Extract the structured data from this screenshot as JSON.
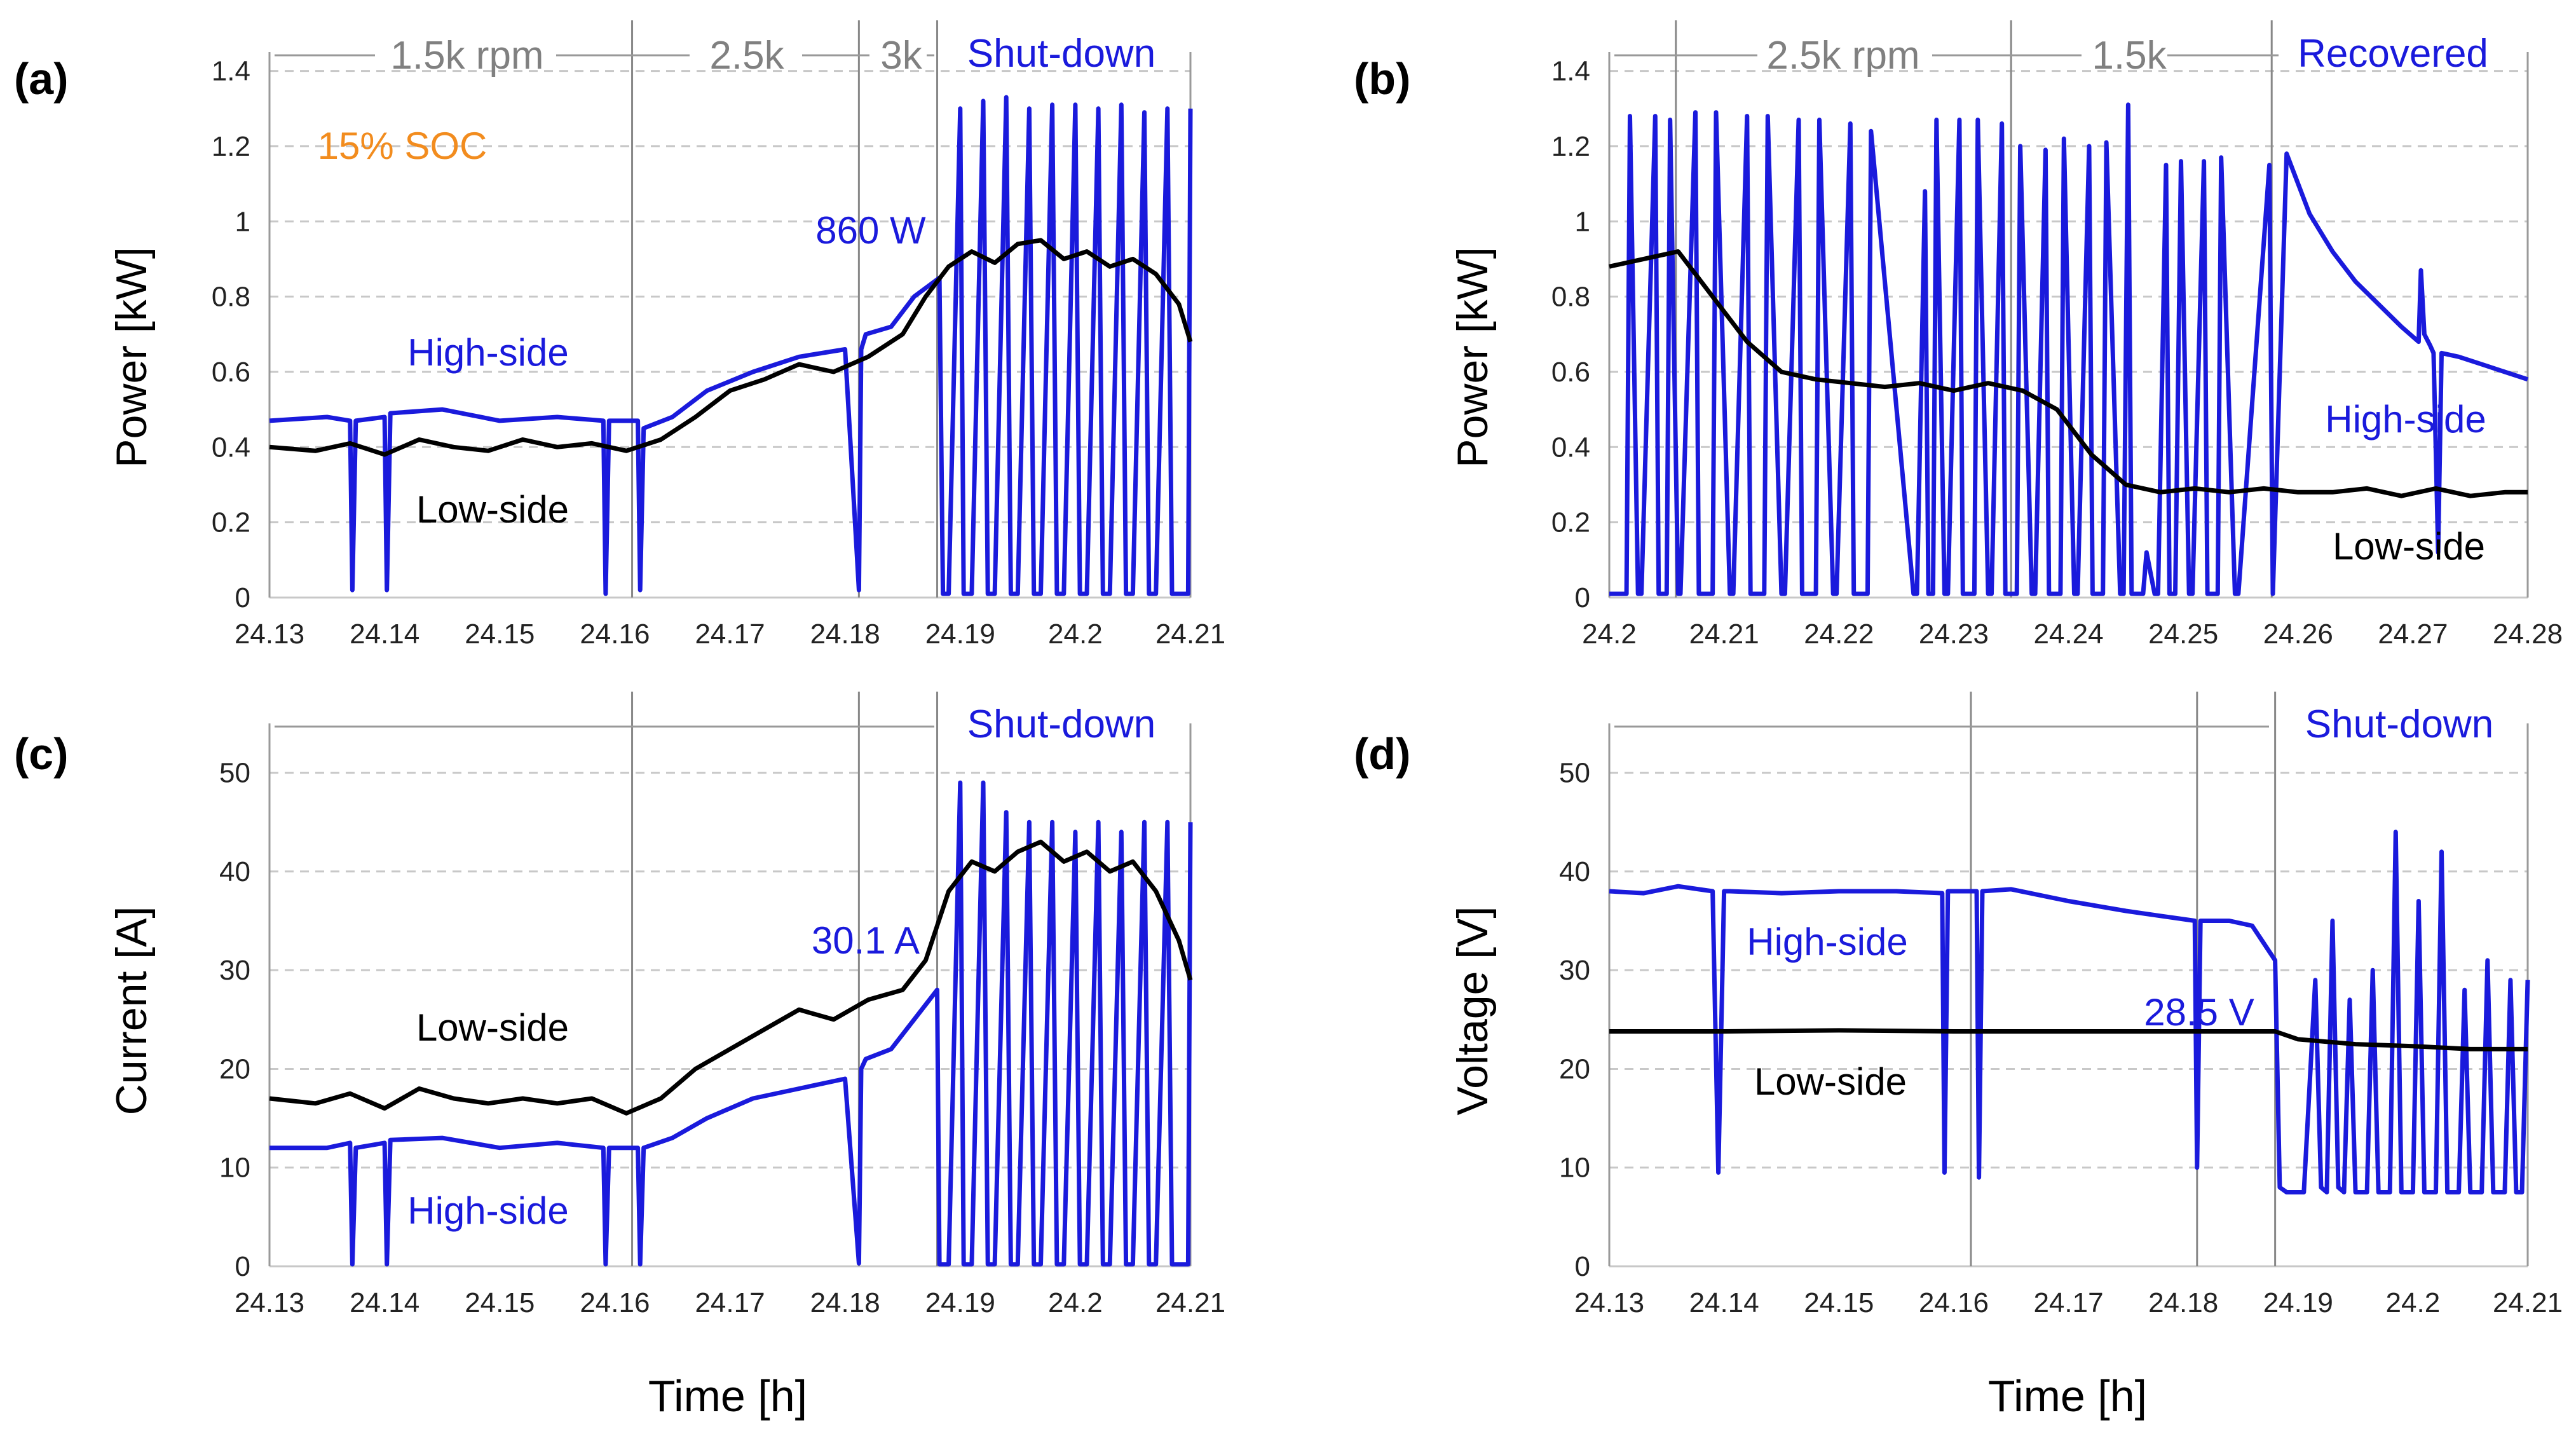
{
  "figure": {
    "shared_xlabel": "Time [h]",
    "colors": {
      "high_side": "#1a1adc",
      "low_side": "#000000",
      "soc": "#f28c1e",
      "phase": "#808080",
      "grid": "#c8c8c8"
    }
  },
  "chart_data": [
    {
      "panel": "(a)",
      "type": "line",
      "ylabel": "Power [kW]",
      "xlim": [
        24.13,
        24.21
      ],
      "ylim": [
        0,
        1.45
      ],
      "xticks": [
        "24.13",
        "24.14",
        "24.15",
        "24.16",
        "24.17",
        "24.18",
        "24.19",
        "24.2",
        "24.21"
      ],
      "yticks": [
        "0",
        "0.2",
        "0.4",
        "0.6",
        "0.8",
        "1",
        "1.2",
        "1.4"
      ],
      "phases": [
        "1.5k rpm",
        "2.5k",
        "3k",
        "Shut-down"
      ],
      "annotations": [
        "15% SOC",
        "860 W",
        "High-side",
        "Low-side"
      ],
      "series": [
        {
          "name": "High-side",
          "x": [
            24.13,
            24.135,
            24.137,
            24.1372,
            24.1375,
            24.14,
            24.1402,
            24.1405,
            24.145,
            24.15,
            24.155,
            24.159,
            24.1592,
            24.1595,
            24.162,
            24.1622,
            24.1625,
            24.165,
            24.168,
            24.172,
            24.176,
            24.18,
            24.1812,
            24.1814,
            24.1818,
            24.184,
            24.186,
            24.1882,
            24.1885,
            24.189,
            24.19,
            24.1903,
            24.191,
            24.192,
            24.1924,
            24.193,
            24.194,
            24.1944,
            24.195,
            24.196,
            24.1964,
            24.197,
            24.198,
            24.1984,
            24.199,
            24.2,
            24.2004,
            24.201,
            24.202,
            24.2024,
            24.203,
            24.204,
            24.2044,
            24.205,
            24.206,
            24.2064,
            24.207,
            24.208,
            24.2084,
            24.209,
            24.2098,
            24.21
          ],
          "y": [
            0.47,
            0.48,
            0.47,
            0.02,
            0.47,
            0.48,
            0.02,
            0.49,
            0.5,
            0.47,
            0.48,
            0.47,
            0.01,
            0.47,
            0.47,
            0.02,
            0.45,
            0.48,
            0.55,
            0.6,
            0.64,
            0.66,
            0.02,
            0.66,
            0.7,
            0.72,
            0.8,
            0.85,
            0.01,
            0.01,
            1.3,
            0.01,
            0.01,
            1.32,
            0.01,
            0.01,
            1.33,
            0.01,
            0.01,
            1.3,
            0.01,
            0.01,
            1.31,
            0.01,
            0.01,
            1.31,
            0.01,
            0.01,
            1.3,
            0.01,
            0.01,
            1.31,
            0.01,
            0.01,
            1.29,
            0.01,
            0.01,
            1.3,
            0.01,
            0.01,
            0.01,
            1.3
          ]
        },
        {
          "name": "Low-side",
          "x": [
            24.13,
            24.134,
            24.137,
            24.14,
            24.143,
            24.146,
            24.149,
            24.152,
            24.155,
            24.158,
            24.161,
            24.164,
            24.167,
            24.17,
            24.173,
            24.176,
            24.179,
            24.182,
            24.185,
            24.187,
            24.189,
            24.191,
            24.193,
            24.195,
            24.197,
            24.199,
            24.201,
            24.203,
            24.205,
            24.207,
            24.209,
            24.21
          ],
          "y": [
            0.4,
            0.39,
            0.41,
            0.38,
            0.42,
            0.4,
            0.39,
            0.42,
            0.4,
            0.41,
            0.39,
            0.42,
            0.48,
            0.55,
            0.58,
            0.62,
            0.6,
            0.64,
            0.7,
            0.8,
            0.88,
            0.92,
            0.89,
            0.94,
            0.95,
            0.9,
            0.92,
            0.88,
            0.9,
            0.86,
            0.78,
            0.68
          ]
        }
      ]
    },
    {
      "panel": "(b)",
      "type": "line",
      "ylabel": "Power [kW]",
      "xlim": [
        24.2,
        24.28
      ],
      "ylim": [
        0,
        1.45
      ],
      "xticks": [
        "24.2",
        "24.21",
        "24.22",
        "24.23",
        "24.24",
        "24.25",
        "24.26",
        "24.27",
        "24.28"
      ],
      "yticks": [
        "0",
        "0.2",
        "0.4",
        "0.6",
        "0.8",
        "1",
        "1.2",
        "1.4"
      ],
      "phases": [
        "2.5k rpm",
        "1.5k",
        "Recovered"
      ],
      "annotations": [
        "High-side",
        "Low-side"
      ],
      "series": [
        {
          "name": "High-side",
          "x": [
            24.2,
            24.2015,
            24.2018,
            24.2025,
            24.2028,
            24.204,
            24.2043,
            24.205,
            24.2053,
            24.206,
            24.2062,
            24.2075,
            24.2078,
            24.209,
            24.2093,
            24.2105,
            24.2108,
            24.212,
            24.2123,
            24.2135,
            24.2138,
            24.215,
            24.2153,
            24.2165,
            24.2168,
            24.218,
            24.2183,
            24.2195,
            24.2198,
            24.221,
            24.2213,
            24.2225,
            24.2228,
            24.2265,
            24.2268,
            24.2275,
            24.2278,
            24.2282,
            24.2285,
            24.2292,
            24.2295,
            24.2305,
            24.2308,
            24.2318,
            24.2321,
            24.233,
            24.2333,
            24.2342,
            24.2345,
            24.2355,
            24.2358,
            24.2368,
            24.2371,
            24.238,
            24.2383,
            24.2393,
            24.2396,
            24.2405,
            24.2408,
            24.2418,
            24.2421,
            24.243,
            24.2433,
            24.2445,
            24.2448,
            24.2452,
            24.2455,
            24.2465,
            24.2468,
            24.2475,
            24.2478,
            24.2485,
            24.2488,
            24.2493,
            24.2498,
            24.2505,
            24.2508,
            24.2518,
            24.2521,
            24.253,
            24.2533,
            24.2545,
            24.2548,
            24.2575,
            24.2578,
            24.259,
            24.261,
            24.263,
            24.265,
            24.267,
            24.269,
            24.2705,
            24.2707,
            24.271,
            24.2715,
            24.2718,
            24.2722,
            24.2725,
            24.274,
            24.276,
            24.278,
            24.28
          ],
          "y": [
            0.01,
            0.01,
            1.28,
            0.01,
            0.01,
            1.28,
            0.01,
            0.01,
            1.27,
            0.01,
            0.01,
            1.29,
            0.01,
            0.01,
            1.29,
            0.01,
            0.01,
            1.28,
            0.01,
            0.01,
            1.28,
            0.01,
            0.01,
            1.27,
            0.01,
            0.01,
            1.27,
            0.01,
            0.01,
            1.26,
            0.01,
            0.01,
            1.24,
            0.01,
            0.01,
            1.08,
            0.01,
            0.01,
            1.27,
            0.01,
            0.01,
            1.27,
            0.01,
            0.01,
            1.27,
            0.01,
            0.01,
            1.26,
            0.01,
            0.01,
            1.2,
            0.01,
            0.01,
            1.19,
            0.01,
            0.01,
            1.22,
            0.01,
            0.01,
            1.2,
            0.01,
            0.01,
            1.21,
            0.01,
            0.01,
            1.31,
            0.01,
            0.01,
            0.12,
            0.01,
            0.01,
            1.15,
            0.01,
            0.01,
            1.16,
            0.01,
            0.01,
            1.16,
            0.01,
            0.01,
            1.17,
            0.01,
            0.01,
            1.15,
            0.01,
            1.18,
            1.02,
            0.92,
            0.84,
            0.78,
            0.72,
            0.68,
            0.87,
            0.7,
            0.67,
            0.65,
            0.12,
            0.65,
            0.64,
            0.62,
            0.6,
            0.58
          ]
        },
        {
          "name": "Low-side",
          "x": [
            24.2,
            24.203,
            24.206,
            24.209,
            24.212,
            24.215,
            24.218,
            24.221,
            24.224,
            24.227,
            24.23,
            24.233,
            24.236,
            24.239,
            24.242,
            24.245,
            24.248,
            24.251,
            24.254,
            24.257,
            24.26,
            24.263,
            24.266,
            24.269,
            24.272,
            24.275,
            24.278,
            24.28
          ],
          "y": [
            0.88,
            0.9,
            0.92,
            0.8,
            0.68,
            0.6,
            0.58,
            0.57,
            0.56,
            0.57,
            0.55,
            0.57,
            0.55,
            0.5,
            0.38,
            0.3,
            0.28,
            0.29,
            0.28,
            0.29,
            0.28,
            0.28,
            0.29,
            0.27,
            0.29,
            0.27,
            0.28,
            0.28
          ]
        }
      ]
    },
    {
      "panel": "(c)",
      "type": "line",
      "ylabel": "Current [A]",
      "xlim": [
        24.13,
        24.21
      ],
      "ylim": [
        0,
        55
      ],
      "xticks": [
        "24.13",
        "24.14",
        "24.15",
        "24.16",
        "24.17",
        "24.18",
        "24.19",
        "24.2",
        "24.21"
      ],
      "yticks": [
        "0",
        "10",
        "20",
        "30",
        "40",
        "50"
      ],
      "phases": [
        "Shut-down"
      ],
      "annotations": [
        "30.1 A",
        "Low-side",
        "High-side"
      ],
      "series": [
        {
          "name": "High-side",
          "x": [
            24.13,
            24.135,
            24.137,
            24.1372,
            24.1375,
            24.14,
            24.1402,
            24.1405,
            24.145,
            24.15,
            24.155,
            24.159,
            24.1592,
            24.1595,
            24.162,
            24.1622,
            24.1625,
            24.165,
            24.168,
            24.172,
            24.176,
            24.18,
            24.1812,
            24.1814,
            24.1818,
            24.184,
            24.186,
            24.188,
            24.1882,
            24.1885,
            24.189,
            24.19,
            24.1903,
            24.191,
            24.192,
            24.1924,
            24.193,
            24.194,
            24.1944,
            24.195,
            24.196,
            24.1964,
            24.197,
            24.198,
            24.1984,
            24.199,
            24.2,
            24.2004,
            24.201,
            24.202,
            24.2024,
            24.203,
            24.204,
            24.2044,
            24.205,
            24.206,
            24.2064,
            24.207,
            24.208,
            24.2084,
            24.209,
            24.2098,
            24.21
          ],
          "y": [
            12,
            12,
            12.5,
            0.2,
            12,
            12.5,
            0.2,
            12.8,
            13,
            12,
            12.5,
            12,
            0.2,
            12,
            12,
            0.2,
            12,
            13,
            15,
            17,
            18,
            19,
            0.3,
            20,
            21,
            22,
            25,
            28,
            0.2,
            0.2,
            0.2,
            49,
            0.2,
            0.2,
            49,
            0.2,
            0.2,
            46,
            0.2,
            0.2,
            45,
            0.2,
            0.2,
            45,
            0.2,
            0.2,
            44,
            0.2,
            0.2,
            45,
            0.2,
            0.2,
            44,
            0.2,
            0.2,
            45,
            0.2,
            0.2,
            45,
            0.2,
            0.2,
            0.2,
            45
          ]
        },
        {
          "name": "Low-side",
          "x": [
            24.13,
            24.134,
            24.137,
            24.14,
            24.143,
            24.146,
            24.149,
            24.152,
            24.155,
            24.158,
            24.161,
            24.164,
            24.167,
            24.17,
            24.173,
            24.176,
            24.179,
            24.182,
            24.185,
            24.187,
            24.189,
            24.191,
            24.193,
            24.195,
            24.197,
            24.199,
            24.201,
            24.203,
            24.205,
            24.207,
            24.209,
            24.21
          ],
          "y": [
            17,
            16.5,
            17.5,
            16,
            18,
            17,
            16.5,
            17,
            16.5,
            17,
            15.5,
            17,
            20,
            22,
            24,
            26,
            25,
            27,
            28,
            31,
            38,
            41,
            40,
            42,
            43,
            41,
            42,
            40,
            41,
            38,
            33,
            29
          ]
        }
      ]
    },
    {
      "panel": "(d)",
      "type": "line",
      "ylabel": "Voltage [V]",
      "xlim": [
        24.13,
        24.21
      ],
      "ylim": [
        0,
        55
      ],
      "xticks": [
        "24.13",
        "24.14",
        "24.15",
        "24.16",
        "24.17",
        "24.18",
        "24.19",
        "24.2",
        "24.21"
      ],
      "yticks": [
        "0",
        "10",
        "20",
        "30",
        "40",
        "50"
      ],
      "phases": [
        "Shut-down"
      ],
      "annotations": [
        "High-side",
        "28.5 V",
        "Low-side"
      ],
      "series": [
        {
          "name": "High-side",
          "x": [
            24.13,
            24.133,
            24.136,
            24.139,
            24.1395,
            24.14,
            24.1405,
            24.145,
            24.15,
            24.155,
            24.159,
            24.1592,
            24.1595,
            24.162,
            24.1622,
            24.1625,
            24.165,
            24.17,
            24.175,
            24.178,
            24.181,
            24.1812,
            24.1815,
            24.184,
            24.186,
            24.188,
            24.1884,
            24.189,
            24.1905,
            24.1915,
            24.192,
            24.1925,
            24.193,
            24.1935,
            24.194,
            24.1945,
            24.195,
            24.196,
            24.1965,
            24.197,
            24.198,
            24.1985,
            24.199,
            24.2,
            24.2005,
            24.201,
            24.202,
            24.2025,
            24.203,
            24.204,
            24.2045,
            24.205,
            24.206,
            24.2065,
            24.207,
            24.208,
            24.2085,
            24.209,
            24.2095,
            24.21
          ],
          "y": [
            38,
            37.8,
            38.5,
            38,
            9.5,
            38,
            38,
            37.8,
            38,
            38,
            37.8,
            9.5,
            38,
            38,
            9,
            38,
            38.2,
            37,
            36,
            35.5,
            35,
            10,
            35,
            35,
            34.5,
            31,
            8,
            7.5,
            7.5,
            29,
            8,
            7.5,
            35,
            8,
            7.5,
            27,
            7.5,
            7.5,
            30,
            7.5,
            7.5,
            44,
            7.5,
            7.5,
            37,
            7.5,
            7.5,
            42,
            7.5,
            7.5,
            28,
            7.5,
            7.5,
            31,
            7.5,
            7.5,
            29,
            7.5,
            7.5,
            29
          ]
        },
        {
          "name": "Low-side",
          "x": [
            24.13,
            24.14,
            24.15,
            24.16,
            24.17,
            24.176,
            24.188,
            24.19,
            24.195,
            24.2,
            24.205,
            24.21
          ],
          "y": [
            23.8,
            23.8,
            23.9,
            23.8,
            23.8,
            23.8,
            23.8,
            23,
            22.5,
            22.3,
            22,
            22
          ]
        }
      ]
    }
  ]
}
